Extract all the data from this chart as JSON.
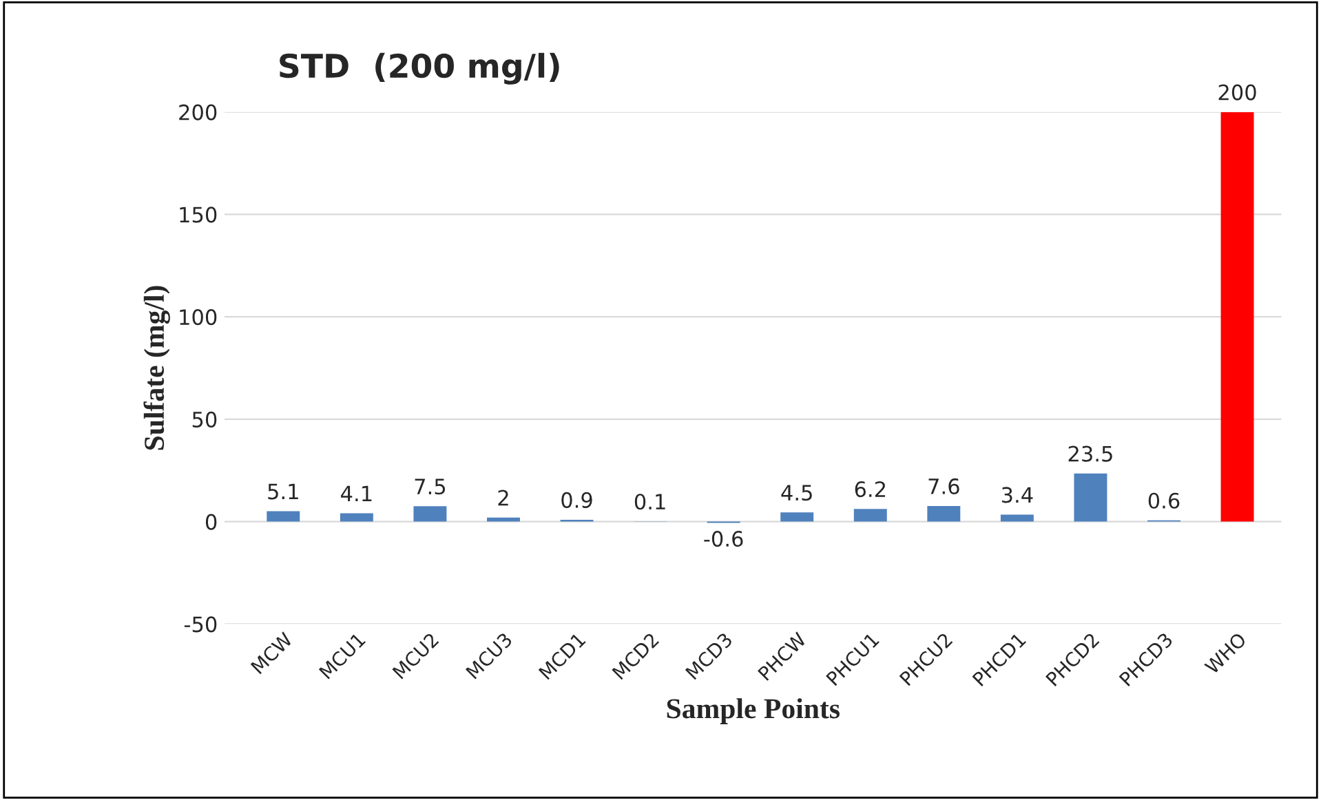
{
  "chart_data": {
    "type": "bar",
    "title": "STD  (200 mg/l)",
    "xlabel": "Sample Points",
    "ylabel": "Sulfate (mg/l)",
    "categories": [
      "MCW",
      "MCU1",
      "MCU2",
      "MCU3",
      "MCD1",
      "MCD2",
      "MCD3",
      "PHCW",
      "PHCU1",
      "PHCU2",
      "PHCD1",
      "PHCD2",
      "PHCD3",
      "WHO"
    ],
    "values": [
      5.1,
      4.1,
      7.5,
      2,
      0.9,
      0.1,
      -0.6,
      4.5,
      6.2,
      7.6,
      3.4,
      23.5,
      0.6,
      200
    ],
    "colors": [
      "#4f81bd",
      "#4f81bd",
      "#4f81bd",
      "#4f81bd",
      "#4f81bd",
      "#4f81bd",
      "#4f81bd",
      "#4f81bd",
      "#4f81bd",
      "#4f81bd",
      "#4f81bd",
      "#4f81bd",
      "#4f81bd",
      "#ff0000"
    ],
    "ylim": [
      -50,
      200
    ],
    "yticks": [
      -50,
      0,
      50,
      100,
      150,
      200
    ],
    "grid": "y",
    "data_labels": true
  }
}
